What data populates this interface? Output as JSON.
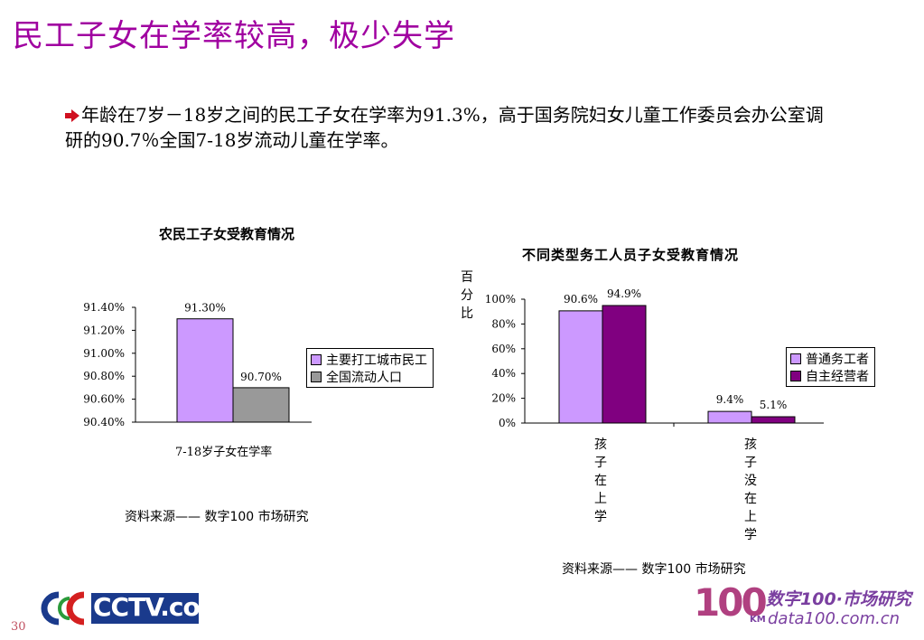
{
  "title": "民工子女在学率较高，极少失学",
  "bullet": "年龄在7岁－18岁之间的民工子女在学率为91.3%，高于国务院妇女儿童工作委员会办公室调研的90.7％全国7-18岁流动儿童在学率。",
  "chart_data": [
    {
      "type": "bar",
      "title": "农民工子女受教育情况",
      "categories": [
        "7-18岁子女在学率"
      ],
      "series": [
        {
          "name": "主要打工城市民工",
          "values": [
            91.3
          ],
          "color": "#cc99ff"
        },
        {
          "name": "全国流动人口",
          "values": [
            90.7
          ],
          "color": "#999999"
        }
      ],
      "data_labels": [
        "91.30%",
        "90.70%"
      ],
      "ylim": [
        90.4,
        91.4
      ],
      "yticks": [
        "91.40%",
        "91.20%",
        "91.00%",
        "90.80%",
        "90.60%",
        "90.40%"
      ],
      "legend": "right",
      "source": "资料来源——  数字100   市场研究"
    },
    {
      "type": "bar",
      "title": "不同类型务工人员子女受教育情况",
      "ylabel": "百分比",
      "categories": [
        "孩子在上学",
        "孩子没在上学"
      ],
      "series": [
        {
          "name": "普通务工者",
          "values": [
            90.6,
            9.4
          ],
          "color": "#cc99ff"
        },
        {
          "name": "自主经营者",
          "values": [
            94.9,
            5.1
          ],
          "color": "#800080"
        }
      ],
      "data_labels": [
        [
          "90.6%",
          "9.4%"
        ],
        [
          "94.9%",
          "5.1%"
        ]
      ],
      "ylim": [
        0,
        100
      ],
      "yticks": [
        "100%",
        "80%",
        "60%",
        "40%",
        "20%",
        "0%"
      ],
      "legend": "right",
      "source": "资料来源——  数字100   市场研究"
    }
  ],
  "footer": {
    "page_number": "30",
    "left_logo": "CCTV.com",
    "right_logo_mark": "100",
    "right_logo_text": "数字100·市场研究",
    "right_logo_km": "KM",
    "right_logo_url": "data100.com.cn"
  }
}
